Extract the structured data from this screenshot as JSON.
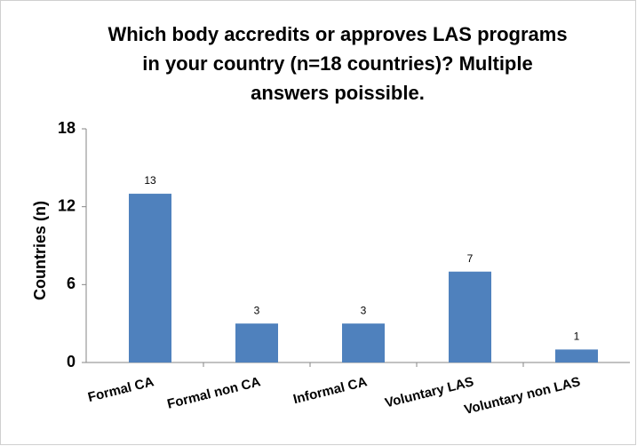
{
  "chart_data": {
    "type": "bar",
    "title": [
      "Which body accredits or approves LAS programs",
      "in your country (n=18 countries)? Multiple",
      "answers poissible."
    ],
    "ylabel": "Countries (n)",
    "categories": [
      "Formal CA",
      "Formal non CA",
      "Informal CA",
      "Voluntary LAS",
      "Voluntary non LAS"
    ],
    "values": [
      13,
      3,
      3,
      7,
      1
    ],
    "color": "#4f81bd",
    "ylim": [
      0,
      18
    ],
    "yticks": [
      0,
      6,
      12,
      18
    ],
    "grid": false
  }
}
